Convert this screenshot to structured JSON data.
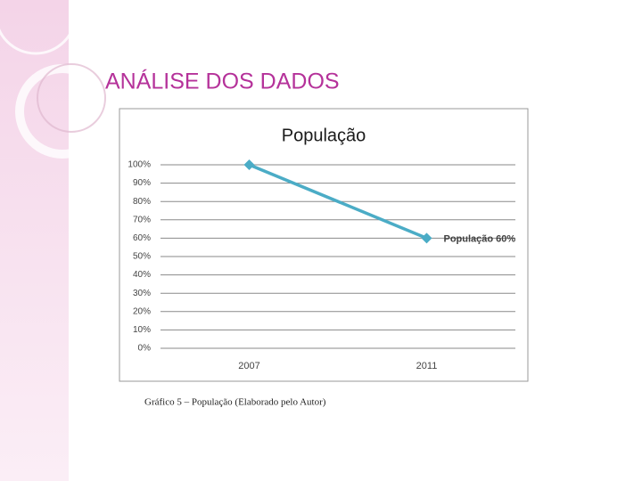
{
  "slide": {
    "heading": "ANÁLISE DOS DADOS",
    "caption": "Gráfico 5 – População  (Elaborado pelo Autor)"
  },
  "chart_data": {
    "type": "line",
    "title": "População",
    "categories": [
      "2007",
      "2011"
    ],
    "values": [
      100,
      60
    ],
    "value_labels": [
      null,
      "População 60%"
    ],
    "color": "#4bacc6",
    "ylim": [
      0,
      100
    ],
    "yticks": [
      {
        "value": 0,
        "label": "0%"
      },
      {
        "value": 10,
        "label": "10%"
      },
      {
        "value": 20,
        "label": "20%"
      },
      {
        "value": 30,
        "label": "30%"
      },
      {
        "value": 40,
        "label": "40%"
      },
      {
        "value": 50,
        "label": "50%"
      },
      {
        "value": 60,
        "label": "60%"
      },
      {
        "value": 70,
        "label": "70%"
      },
      {
        "value": 80,
        "label": "80%"
      },
      {
        "value": 90,
        "label": "90%"
      },
      {
        "value": 100,
        "label": "100%"
      }
    ],
    "grid": true
  }
}
